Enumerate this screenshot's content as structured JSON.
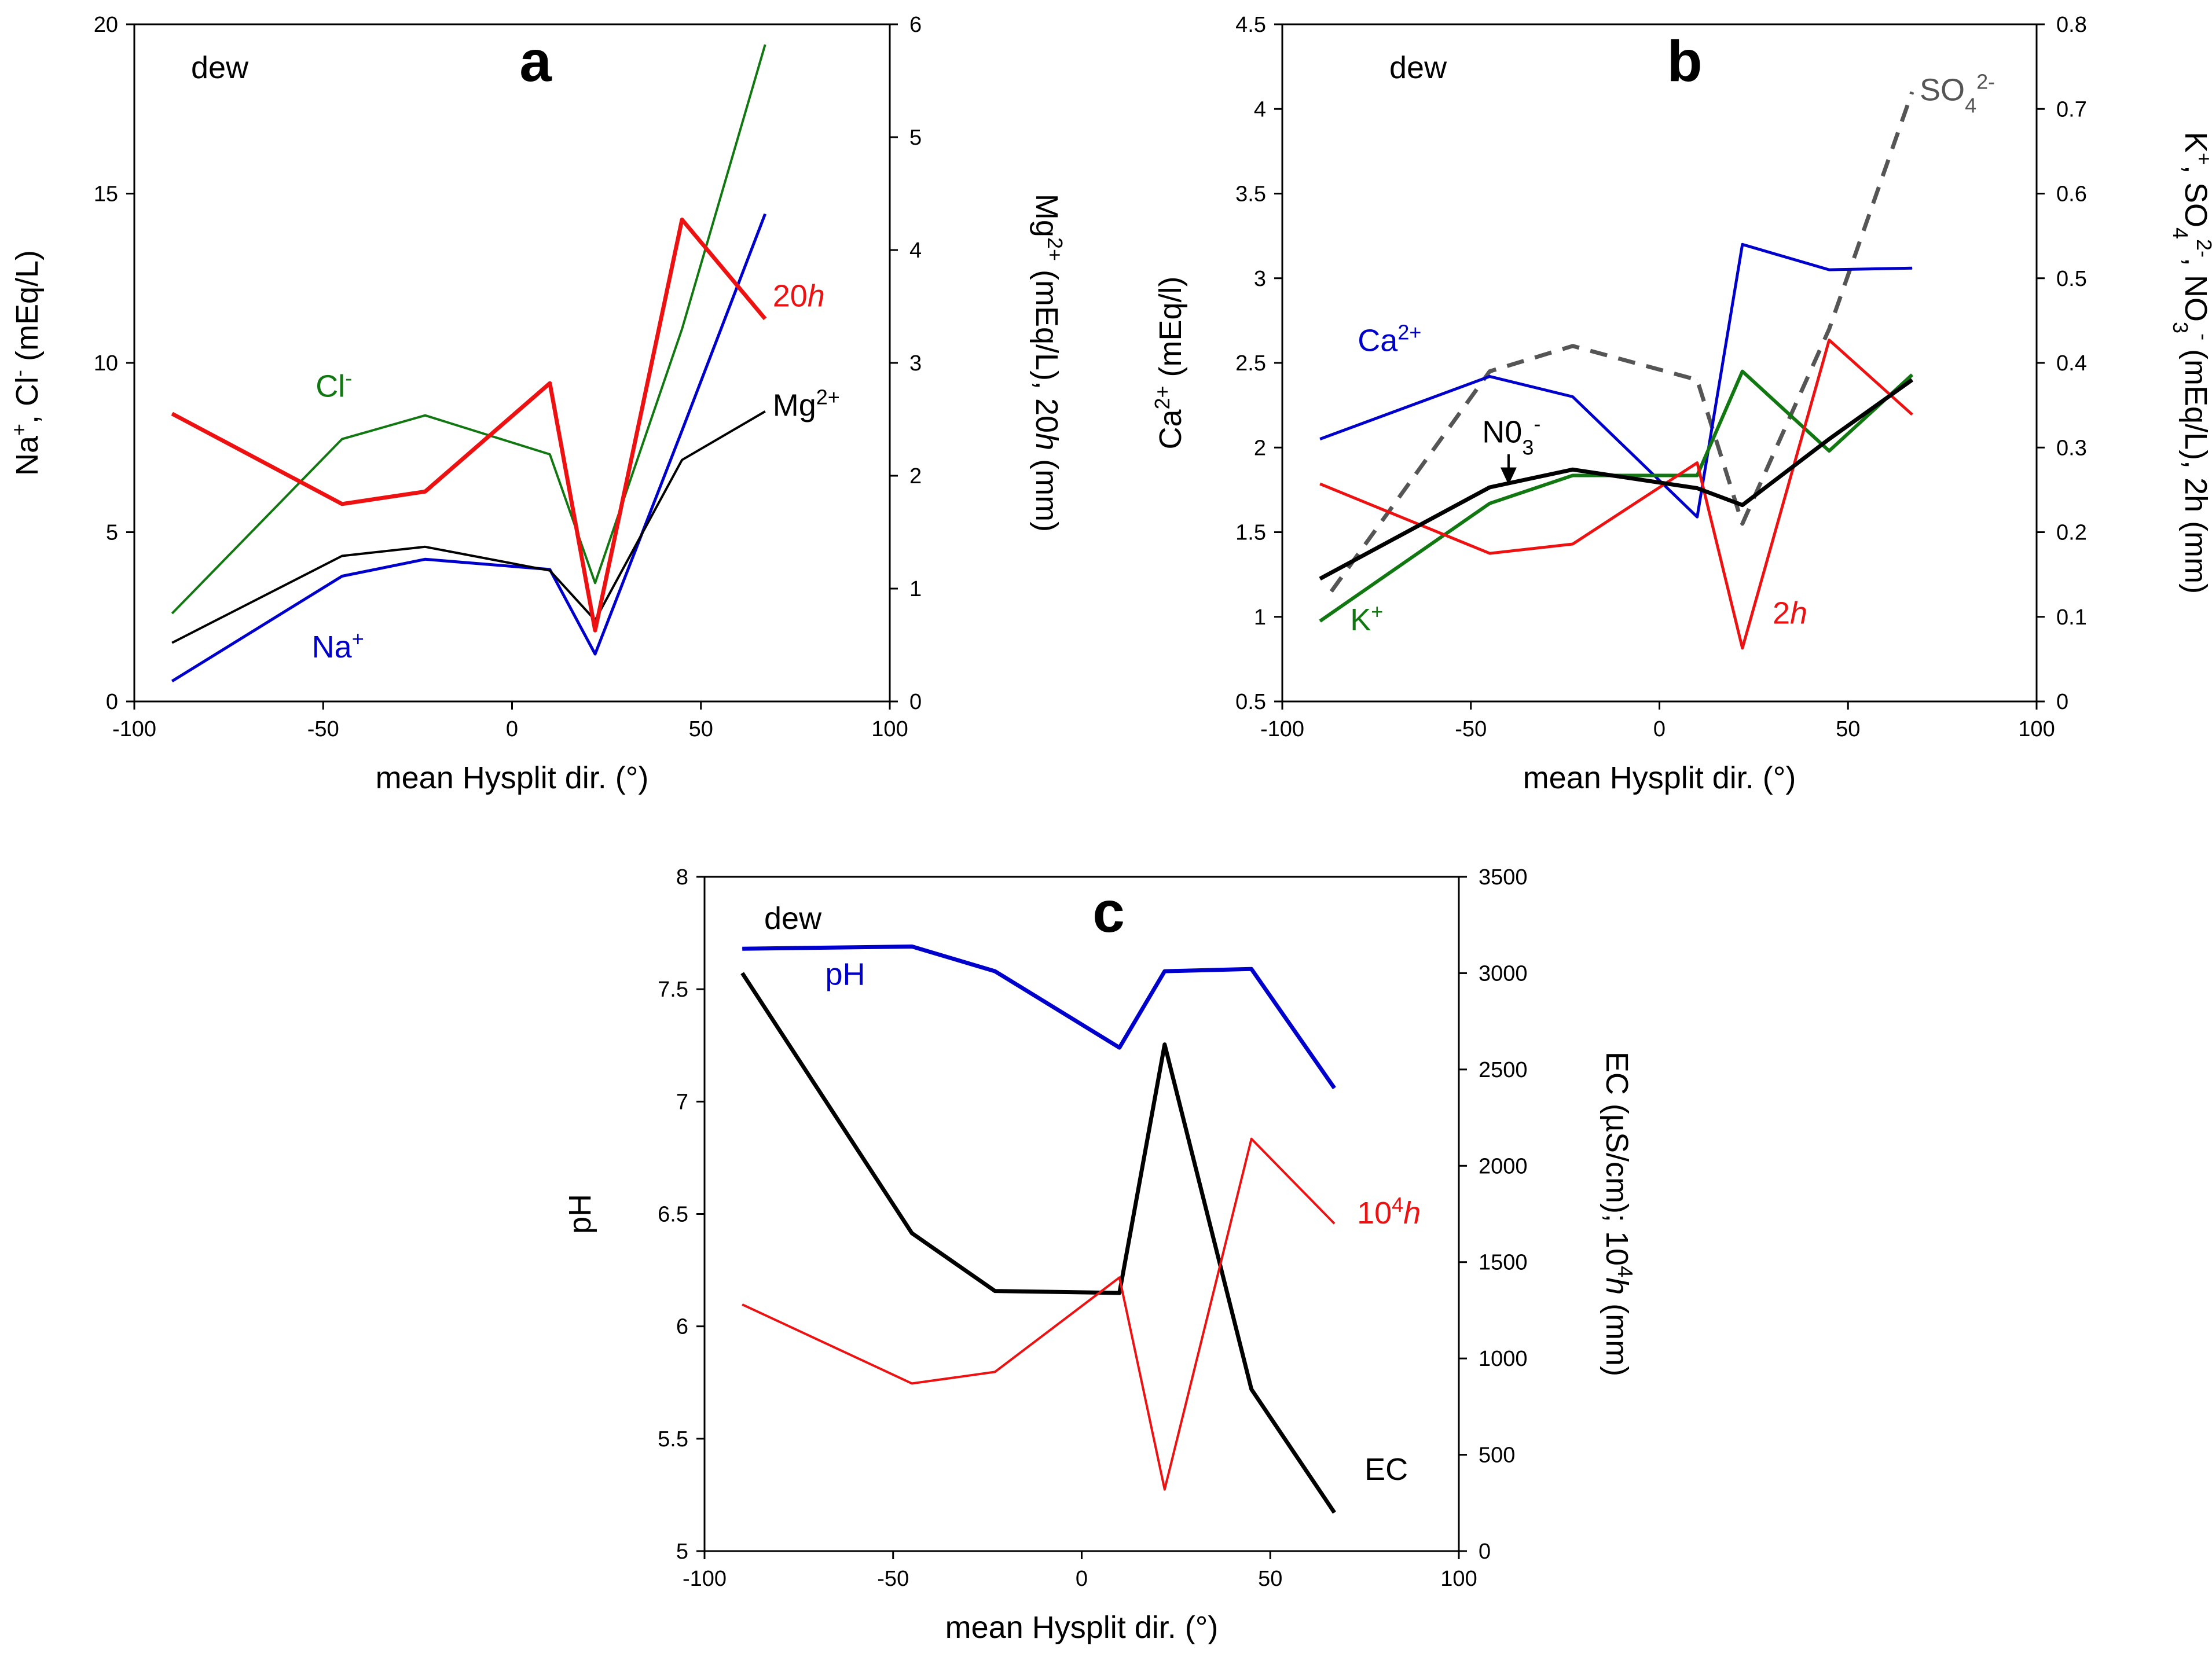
{
  "colors": {
    "blue": "#0000cc",
    "red": "#ee1111",
    "green": "#117711",
    "black": "#000000",
    "gray": "#555555"
  },
  "chart_data": [
    {
      "type": "line",
      "panel": "a",
      "tag": "dew",
      "xlabel": "mean Hysplit dir. (°)",
      "ylabel_left": {
        "html": "Na<tspan baseline-shift=\"super\" font-size=\"36\">+</tspan>, Cl<tspan baseline-shift=\"super\" font-size=\"36\">-</tspan> (mEq/L)",
        "text": "Na+, Cl- (mEq/L)"
      },
      "ylabel_right": {
        "html": "Mg<tspan baseline-shift=\"super\" font-size=\"36\">2+</tspan> (mEq/L), 20<tspan font-style=\"italic\">h</tspan> (mm)",
        "text": "Mg2+ (mEq/L), 20h (mm)"
      },
      "xlim": [
        -100,
        100
      ],
      "xticks": [
        -100,
        -50,
        0,
        50,
        100
      ],
      "ylim_left": [
        0,
        20
      ],
      "yticks_left": [
        0,
        5,
        10,
        15,
        20
      ],
      "ylim_right": [
        0,
        6
      ],
      "yticks_right": [
        0,
        1,
        2,
        3,
        4,
        5,
        6
      ],
      "series": [
        {
          "name": "Cl-",
          "axis": "left",
          "color": "#117711",
          "width": 4,
          "dash": "",
          "x": [
            -90,
            -45,
            -23,
            10,
            22,
            45,
            67
          ],
          "values": [
            2.6,
            7.75,
            8.45,
            7.3,
            3.5,
            11.0,
            19.4
          ],
          "label": {
            "html": "Cl<tspan baseline-shift=\"super\" font-size=\"36\">-</tspan>",
            "text": "Cl-",
            "x": -52,
            "y": 9.0
          }
        },
        {
          "name": "Na+",
          "axis": "left",
          "color": "#0000cc",
          "width": 5,
          "dash": "",
          "x": [
            -90,
            -45,
            -23,
            10,
            22,
            45,
            67
          ],
          "values": [
            0.6,
            3.7,
            4.2,
            3.9,
            1.4,
            8.0,
            14.4
          ],
          "label": {
            "html": "Na<tspan baseline-shift=\"super\" font-size=\"36\">+</tspan>",
            "text": "Na+",
            "x": -53,
            "y": 1.3
          }
        },
        {
          "name": "Mg2+",
          "axis": "right",
          "color": "#000000",
          "width": 4,
          "dash": "",
          "x": [
            -90,
            -45,
            -23,
            10,
            22,
            45,
            67
          ],
          "values": [
            0.52,
            1.29,
            1.37,
            1.16,
            0.72,
            2.14,
            2.57
          ],
          "label": {
            "html": "Mg<tspan baseline-shift=\"super\" font-size=\"36\">2+</tspan>",
            "text": "Mg2+",
            "x": 69,
            "y": 2.53
          }
        },
        {
          "name": "20h",
          "axis": "right",
          "color": "#ee1111",
          "width": 7,
          "dash": "",
          "x": [
            -90,
            -45,
            -23,
            10,
            22,
            45,
            67
          ],
          "values": [
            2.55,
            1.75,
            1.86,
            2.82,
            0.63,
            4.27,
            3.39
          ],
          "label": {
            "html": "20<tspan font-style=\"italic\">h</tspan>",
            "text": "20h",
            "x": 69,
            "y": 3.5
          }
        }
      ]
    },
    {
      "type": "line",
      "panel": "b",
      "tag": "dew",
      "xlabel": "mean Hysplit dir. (°)",
      "ylabel_left": {
        "html": "Ca<tspan baseline-shift=\"super\" font-size=\"36\">2+</tspan> (mEq/l)",
        "text": "Ca2+ (mEq/l)"
      },
      "ylabel_right": {
        "html": "K<tspan baseline-shift=\"super\" font-size=\"36\">+</tspan>, SO<tspan baseline-shift=\"sub\" font-size=\"36\">4</tspan><tspan baseline-shift=\"super\" font-size=\"36\">2-</tspan>, NO<tspan baseline-shift=\"sub\" font-size=\"36\">3</tspan><tspan baseline-shift=\"super\" font-size=\"36\">-</tspan> (mEq/L), 2h (mm)",
        "text": "K+, SO42-, NO3- (mEq/L), 2h (mm)"
      },
      "xlim": [
        -100,
        100
      ],
      "xticks": [
        -100,
        -50,
        0,
        50,
        100
      ],
      "ylim_left": [
        0.5,
        4.5
      ],
      "yticks_left": [
        0.5,
        1,
        1.5,
        2,
        2.5,
        3,
        3.5,
        4,
        4.5
      ],
      "ylim_right": [
        0,
        0.8
      ],
      "yticks_right": [
        0,
        0.1,
        0.2,
        0.3,
        0.4,
        0.5,
        0.6,
        0.7,
        0.8
      ],
      "series": [
        {
          "name": "SO42-",
          "axis": "right",
          "color": "#555555",
          "width": 7,
          "dash": "30,20",
          "x": [
            -87,
            -45,
            -23,
            10,
            22,
            45,
            67
          ],
          "values": [
            0.13,
            0.39,
            0.42,
            0.38,
            0.21,
            0.44,
            0.72
          ],
          "label": {
            "html": "SO<tspan baseline-shift=\"sub\" font-size=\"36\">4</tspan><tspan baseline-shift=\"super\" font-size=\"36\">2-</tspan>",
            "text": "SO42-",
            "x": 69,
            "y": 0.71
          }
        },
        {
          "name": "Ca2+",
          "axis": "left",
          "color": "#0000cc",
          "width": 5,
          "dash": "",
          "x": [
            -90,
            -45,
            -23,
            10,
            22,
            45,
            67
          ],
          "values": [
            2.05,
            2.42,
            2.3,
            1.59,
            3.2,
            3.05,
            3.06
          ],
          "label": {
            "html": "Ca<tspan baseline-shift=\"super\" font-size=\"36\">2+</tspan>",
            "text": "Ca2+",
            "x": -80,
            "y": 2.57
          }
        },
        {
          "name": "K+",
          "axis": "right",
          "color": "#117711",
          "width": 6,
          "dash": "",
          "x": [
            -90,
            -45,
            -23,
            10,
            22,
            45,
            67
          ],
          "values": [
            0.095,
            0.234,
            0.267,
            0.267,
            0.39,
            0.296,
            0.386
          ],
          "label": {
            "html": "K<tspan baseline-shift=\"super\" font-size=\"36\">+</tspan>",
            "text": "K+",
            "x": -82,
            "y": 0.92
          }
        },
        {
          "name": "2h",
          "axis": "right",
          "color": "#ee1111",
          "width": 5,
          "dash": "",
          "x": [
            -90,
            -45,
            -23,
            10,
            22,
            45,
            67
          ],
          "values": [
            0.257,
            0.175,
            0.186,
            0.282,
            0.063,
            0.427,
            0.339
          ],
          "label": {
            "html": "2<tspan font-style=\"italic\">h</tspan>",
            "text": "2h",
            "x": 30,
            "y": 0.96
          }
        },
        {
          "name": "NO3-",
          "axis": "right",
          "color": "#000000",
          "width": 7,
          "dash": "",
          "x": [
            -90,
            -45,
            -23,
            10,
            22,
            45,
            67
          ],
          "values": [
            0.145,
            0.253,
            0.274,
            0.252,
            0.232,
            0.31,
            0.38
          ],
          "label": {
            "html": "N0<tspan baseline-shift=\"sub\" font-size=\"36\">3</tspan><tspan baseline-shift=\"super\" font-size=\"36\">-</tspan>",
            "text": "N03-",
            "x": -47,
            "y": 2.03
          }
        }
      ]
    },
    {
      "type": "line",
      "panel": "c",
      "tag": "dew",
      "xlabel": "mean Hysplit dir. (°)",
      "ylabel_left": {
        "html": "pH",
        "text": "pH"
      },
      "ylabel_right": {
        "html": "EC (µS/cm); 10<tspan baseline-shift=\"super\" font-size=\"36\">4</tspan><tspan font-style=\"italic\">h</tspan> (mm)",
        "text": "EC (µS/cm); 104h (mm)"
      },
      "xlim": [
        -100,
        100
      ],
      "xticks": [
        -100,
        -50,
        0,
        50,
        100
      ],
      "ylim_left": [
        5,
        8
      ],
      "yticks_left": [
        5,
        5.5,
        6,
        6.5,
        7,
        7.5,
        8
      ],
      "ylim_right": [
        0,
        3500
      ],
      "yticks_right": [
        0,
        500,
        1000,
        1500,
        2000,
        2500,
        3000,
        3500
      ],
      "series": [
        {
          "name": "pH",
          "axis": "left",
          "color": "#0000cc",
          "width": 7,
          "dash": "",
          "x": [
            -90,
            -45,
            -23,
            10,
            22,
            45,
            67
          ],
          "values": [
            7.68,
            7.69,
            7.58,
            7.24,
            7.58,
            7.59,
            7.06
          ],
          "label": {
            "html": "pH",
            "text": "pH",
            "x": -68,
            "y": 7.52
          }
        },
        {
          "name": "EC",
          "axis": "right",
          "color": "#000000",
          "width": 7,
          "dash": "",
          "x": [
            -90,
            -45,
            -23,
            10,
            22,
            45,
            67
          ],
          "values": [
            3000,
            1650,
            1350,
            1340,
            2630,
            840,
            200
          ],
          "label": {
            "html": "EC",
            "text": "EC",
            "x": 75,
            "y": 370
          }
        },
        {
          "name": "104h",
          "axis": "right",
          "color": "#ee1111",
          "width": 4,
          "dash": "",
          "x": [
            -90,
            -45,
            -23,
            10,
            22,
            45,
            67
          ],
          "values": [
            1280,
            870,
            930,
            1420,
            320,
            2140,
            1700
          ],
          "label": {
            "html": "10<tspan baseline-shift=\"super\" font-size=\"36\">4</tspan><tspan font-style=\"italic\">h</tspan>",
            "text": "104h",
            "x": 73,
            "y": 1700
          }
        }
      ]
    }
  ]
}
